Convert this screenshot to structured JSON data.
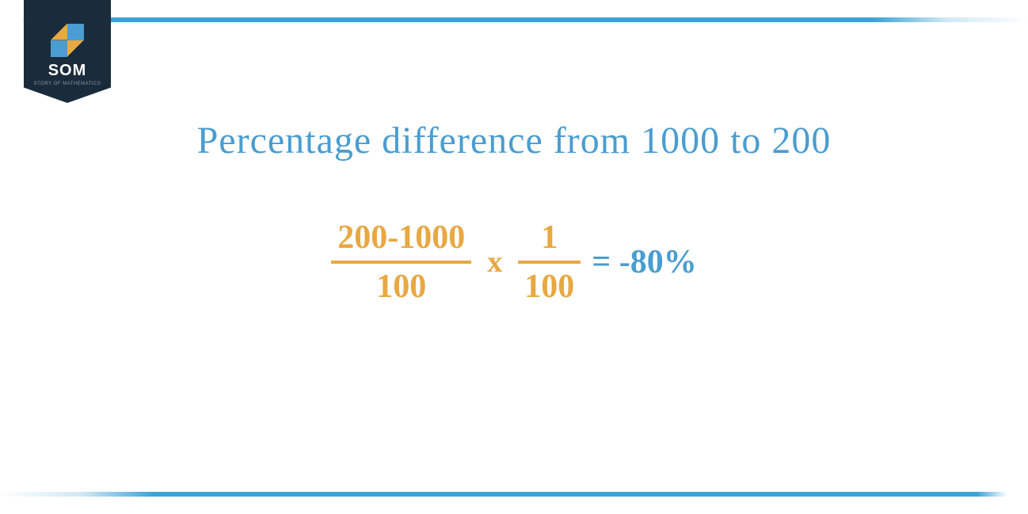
{
  "logo": {
    "main_text": "SOM",
    "sub_text": "STORY OF MATHEMATICS",
    "badge_color": "#1a2b3c",
    "icon_color_1": "#4a9dd0",
    "icon_color_2": "#e8a842"
  },
  "title": {
    "text": "Percentage difference from 1000 to 200",
    "color": "#4a9dd0",
    "font_size": 48
  },
  "equation": {
    "fraction1": {
      "numerator": "200-1000",
      "denominator": "100",
      "color": "#e8a842"
    },
    "multiply_symbol": "x",
    "fraction2": {
      "numerator": "1",
      "denominator": "100",
      "color": "#e8a842"
    },
    "result": "= -80%",
    "result_color": "#4a9dd0",
    "font_size": 42
  },
  "borders": {
    "color": "#3ba3d8",
    "thickness": 6
  },
  "background_color": "#ffffff"
}
